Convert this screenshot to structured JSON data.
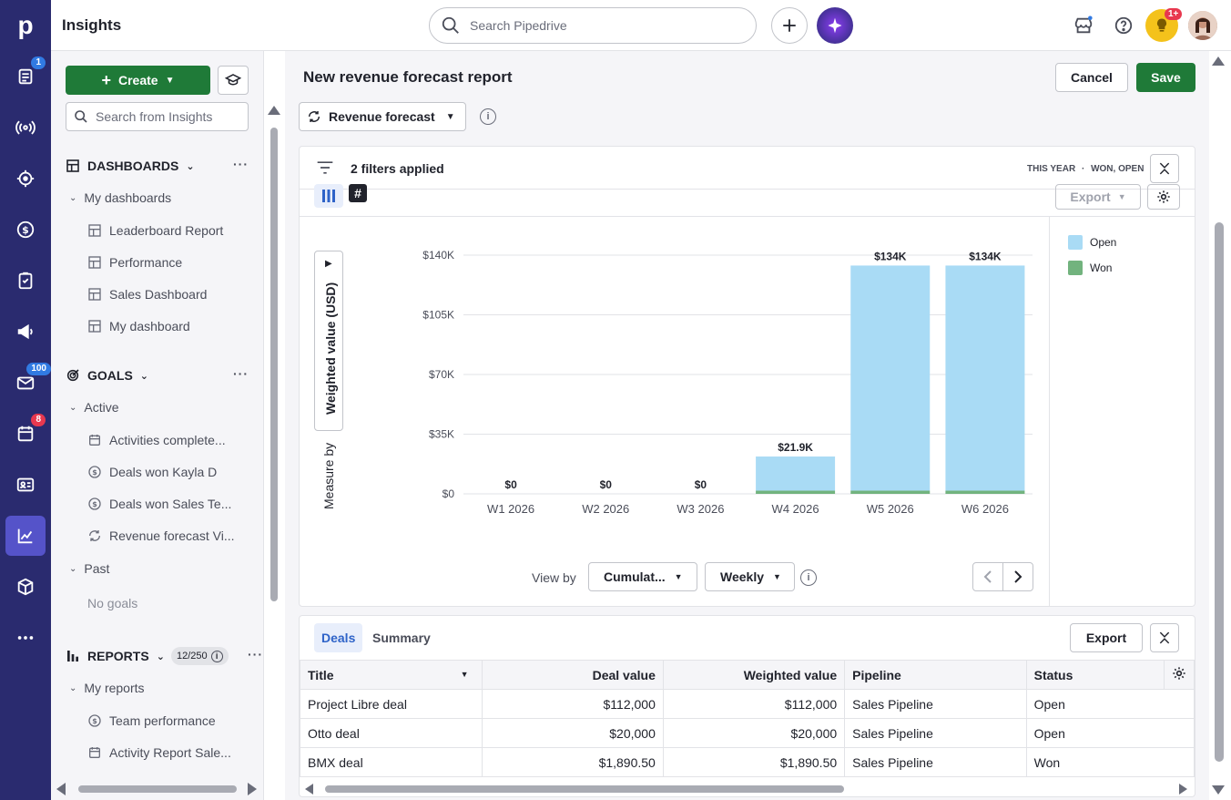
{
  "app": {
    "title": "Insights",
    "logo": "p"
  },
  "rail": {
    "badges": {
      "leads": "1",
      "mail": "100",
      "activities": "8"
    },
    "items": [
      "leads-icon",
      "campaigns-icon",
      "target-icon",
      "deals-icon",
      "tasks-icon",
      "megaphone-icon",
      "mail-icon",
      "calendar-icon",
      "contacts-icon",
      "insights-icon",
      "products-icon",
      "more-icon"
    ]
  },
  "topbar": {
    "search_placeholder": "Search Pipedrive",
    "notifications_badge": "1+"
  },
  "sidebar": {
    "create_label": "Create",
    "search_placeholder": "Search from Insights",
    "dashboards": {
      "header": "DASHBOARDS",
      "group": "My dashboards",
      "items": [
        "Leaderboard Report",
        "Performance",
        "Sales Dashboard",
        "My dashboard"
      ]
    },
    "goals": {
      "header": "GOALS",
      "active_label": "Active",
      "items": [
        "Activities complete...",
        "Deals won Kayla D",
        "Deals won Sales Te...",
        "Revenue forecast Vi..."
      ],
      "past_label": "Past",
      "past_empty": "No goals"
    },
    "reports": {
      "header": "REPORTS",
      "count": "12/250",
      "group": "My reports",
      "items": [
        "Team performance",
        "Activity Report Sale..."
      ]
    }
  },
  "report": {
    "title": "New revenue forecast report",
    "cancel_label": "Cancel",
    "save_label": "Save",
    "type_label": "Revenue forecast",
    "filters_label": "2 filters applied",
    "filters_period": "THIS YEAR",
    "filters_status": "WON, OPEN",
    "export_label": "Export",
    "measure_by_label": "Measure by",
    "measure_value": "Weighted value (USD)",
    "view_by_label": "View by",
    "view_by_value": "Cumulat...",
    "interval_value": "Weekly"
  },
  "chart_data": {
    "type": "bar",
    "stacked": true,
    "categories": [
      "W1 2026",
      "W2 2026",
      "W3 2026",
      "W4 2026",
      "W5 2026",
      "W6 2026"
    ],
    "series": [
      {
        "name": "Won",
        "color": "#72b37e",
        "values": [
          0,
          0,
          0,
          1890.5,
          1890.5,
          1890.5
        ]
      },
      {
        "name": "Open",
        "color": "#a9dbf5",
        "values": [
          0,
          0,
          0,
          20000,
          132000,
          132000
        ]
      }
    ],
    "totals_labels": [
      "$0",
      "$0",
      "$0",
      "$21.9K",
      "$134K",
      "$134K"
    ],
    "y_ticks": [
      "$0",
      "$35K",
      "$70K",
      "$105K",
      "$140K"
    ],
    "ylim": [
      0,
      140000
    ],
    "legend": [
      "Open",
      "Won"
    ],
    "legend_position": "right",
    "grid": true
  },
  "table": {
    "tabs": [
      "Deals",
      "Summary"
    ],
    "export_label": "Export",
    "columns": [
      "Title",
      "Deal value",
      "Weighted value",
      "Pipeline",
      "Status"
    ],
    "rows": [
      [
        "Project Libre deal",
        "$112,000",
        "$112,000",
        "Sales Pipeline",
        "Open"
      ],
      [
        "Otto deal",
        "$20,000",
        "$20,000",
        "Sales Pipeline",
        "Open"
      ],
      [
        "BMX deal",
        "$1,890.50",
        "$1,890.50",
        "Sales Pipeline",
        "Won"
      ]
    ]
  }
}
